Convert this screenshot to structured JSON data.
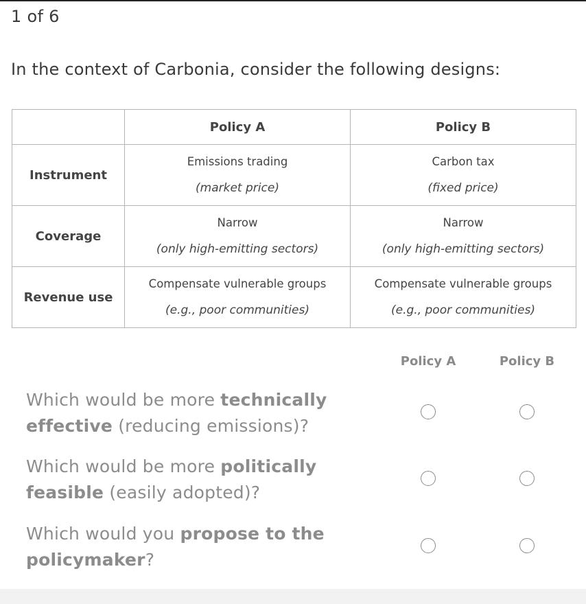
{
  "progress": "1 of 6",
  "intro": "In the context of Carbonia, consider the following designs:",
  "table": {
    "headers": [
      "",
      "Policy A",
      "Policy B"
    ],
    "rows": [
      {
        "label": "Instrument",
        "a": {
          "main": "Emissions trading",
          "sub": "(market price)"
        },
        "b": {
          "main": "Carbon tax",
          "sub": "(fixed price)"
        }
      },
      {
        "label": "Coverage",
        "a": {
          "main": "Narrow",
          "sub": "(only high-emitting sectors)"
        },
        "b": {
          "main": "Narrow",
          "sub": "(only high-emitting sectors)"
        }
      },
      {
        "label": "Revenue use",
        "a": {
          "main": "Compensate vulnerable groups",
          "sub": "(e.g., poor communities)"
        },
        "b": {
          "main": "Compensate vulnerable groups",
          "sub": "(e.g., poor communities)"
        }
      }
    ]
  },
  "choices": {
    "col_a": "Policy A",
    "col_b": "Policy B"
  },
  "questions": [
    {
      "pre": "Which would be more ",
      "bold1": "technically effective",
      "post": " (reducing emissions)?"
    },
    {
      "pre": "Which would be more ",
      "bold1": "politically feasible",
      "post": " (easily adopted)?"
    },
    {
      "pre": "Which would you ",
      "bold1": "propose to the policymaker",
      "post": "?"
    }
  ]
}
